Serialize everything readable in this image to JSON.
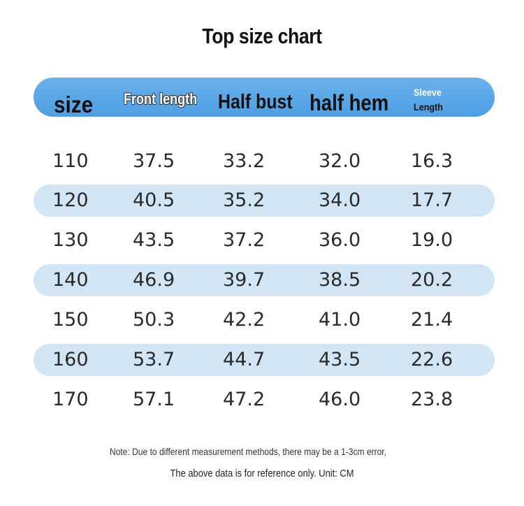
{
  "title": "Top size chart",
  "headers": {
    "size": "size",
    "front_length": "Front length",
    "half_bust": "Half bust",
    "half_hem": "half hem",
    "sleeve_line1": "Sleeve",
    "sleeve_line2": "Length"
  },
  "rows": [
    {
      "size": "110",
      "front": "37.5",
      "bust": "33.2",
      "hem": "32.0",
      "sleeve": "16.3"
    },
    {
      "size": "120",
      "front": "40.5",
      "bust": "35.2",
      "hem": "34.0",
      "sleeve": "17.7"
    },
    {
      "size": "130",
      "front": "43.5",
      "bust": "37.2",
      "hem": "36.0",
      "sleeve": "19.0"
    },
    {
      "size": "140",
      "front": "46.9",
      "bust": "39.7",
      "hem": "38.5",
      "sleeve": "20.2"
    },
    {
      "size": "150",
      "front": "50.3",
      "bust": "42.2",
      "hem": "41.0",
      "sleeve": "21.4"
    },
    {
      "size": "160",
      "front": "53.7",
      "bust": "44.7",
      "hem": "43.5",
      "sleeve": "22.6"
    },
    {
      "size": "170",
      "front": "57.1",
      "bust": "47.2",
      "hem": "46.0",
      "sleeve": "23.8"
    }
  ],
  "notes": {
    "line1": "Note: Due to different measurement methods, there may be a 1-3cm error,",
    "line2": "The above data is for reference only. Unit: CM"
  },
  "colors": {
    "header_bar": "#5aa6e6",
    "row_shade": "#d1e5f5"
  }
}
